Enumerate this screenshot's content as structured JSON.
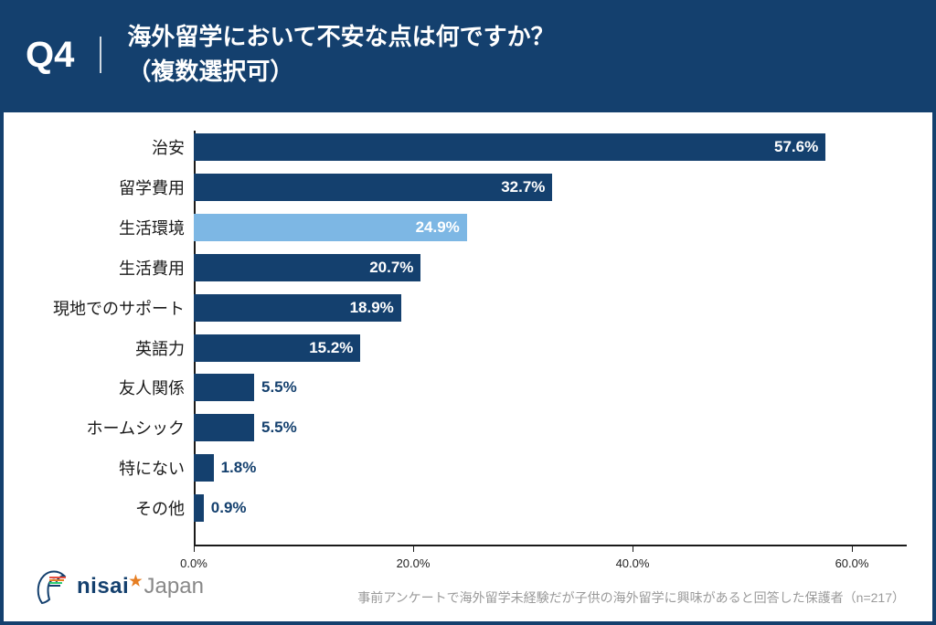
{
  "header": {
    "qnum": "Q4",
    "title_line1": "海外留学において不安な点は何ですか？",
    "title_line2": "（複数選択可）"
  },
  "chart": {
    "type": "bar-horizontal",
    "x_max": 65,
    "ticks": [
      0,
      20,
      40,
      60
    ],
    "tick_labels": [
      "0.0%",
      "20.0%",
      "40.0%",
      "60.0%"
    ],
    "bar_color_default": "#14406e",
    "bar_color_highlight": "#7db7e4",
    "label_inside_threshold": 7,
    "bars": [
      {
        "category": "治安",
        "value": 57.6,
        "label": "57.6%",
        "highlight": false
      },
      {
        "category": "留学費用",
        "value": 32.7,
        "label": "32.7%",
        "highlight": false
      },
      {
        "category": "生活環境",
        "value": 24.9,
        "label": "24.9%",
        "highlight": true
      },
      {
        "category": "生活費用",
        "value": 20.7,
        "label": "20.7%",
        "highlight": false
      },
      {
        "category": "現地でのサポート",
        "value": 18.9,
        "label": "18.9%",
        "highlight": false
      },
      {
        "category": "英語力",
        "value": 15.2,
        "label": "15.2%",
        "highlight": false
      },
      {
        "category": "友人関係",
        "value": 5.5,
        "label": "5.5%",
        "highlight": false
      },
      {
        "category": "ホームシック",
        "value": 5.5,
        "label": "5.5%",
        "highlight": false
      },
      {
        "category": "特にない",
        "value": 1.8,
        "label": "1.8%",
        "highlight": false
      },
      {
        "category": "その他",
        "value": 0.9,
        "label": "0.9%",
        "highlight": false
      }
    ]
  },
  "logo": {
    "nisai": "nisai",
    "japan": "Japan"
  },
  "footnote": "事前アンケートで海外留学未経験だが子供の海外留学に興味があると回答した保護者（n=217）"
}
